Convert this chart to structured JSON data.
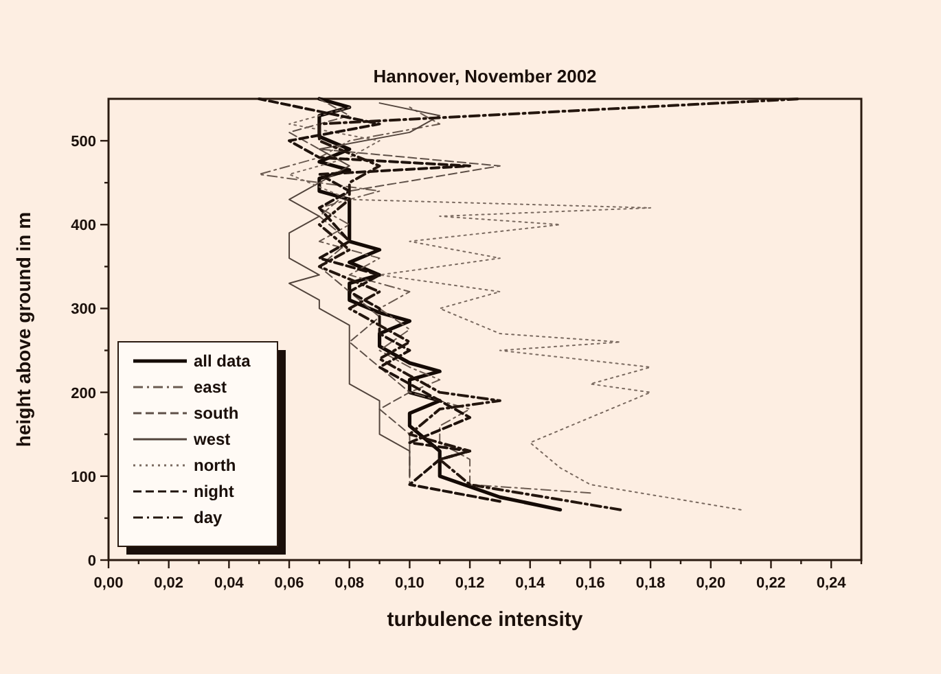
{
  "chart_data": {
    "type": "line",
    "title": "Hannover, November 2002",
    "xlabel": "turbulence intensity",
    "ylabel": "height above ground in m",
    "xlim": [
      0,
      0.25
    ],
    "ylim": [
      0,
      550
    ],
    "xticks": [
      {
        "value": 0,
        "label": "0,00"
      },
      {
        "value": 0.01,
        "label": null
      },
      {
        "value": 0.02,
        "label": "0,02"
      },
      {
        "value": 0.03,
        "label": null
      },
      {
        "value": 0.04,
        "label": "0,04"
      },
      {
        "value": 0.05,
        "label": null
      },
      {
        "value": 0.06,
        "label": "0,06"
      },
      {
        "value": 0.07,
        "label": null
      },
      {
        "value": 0.08,
        "label": "0,08"
      },
      {
        "value": 0.09,
        "label": null
      },
      {
        "value": 0.1,
        "label": "0,10"
      },
      {
        "value": 0.11,
        "label": null
      },
      {
        "value": 0.12,
        "label": "0,12"
      },
      {
        "value": 0.13,
        "label": null
      },
      {
        "value": 0.14,
        "label": "0,14"
      },
      {
        "value": 0.15,
        "label": null
      },
      {
        "value": 0.16,
        "label": "0,16"
      },
      {
        "value": 0.17,
        "label": null
      },
      {
        "value": 0.18,
        "label": "0,18"
      },
      {
        "value": 0.19,
        "label": null
      },
      {
        "value": 0.2,
        "label": "0,20"
      },
      {
        "value": 0.21,
        "label": null
      },
      {
        "value": 0.22,
        "label": "0,22"
      },
      {
        "value": 0.23,
        "label": null
      },
      {
        "value": 0.24,
        "label": "0,24"
      },
      {
        "value": 0.25,
        "label": null
      }
    ],
    "yticks": [
      0,
      {
        "value": 50,
        "label": null
      },
      100,
      {
        "value": 150,
        "label": null
      },
      200,
      {
        "value": 250,
        "label": null
      },
      300,
      {
        "value": 350,
        "label": null
      },
      400,
      {
        "value": 450,
        "label": null
      },
      500
    ],
    "legend": "bottom left",
    "grid": false,
    "series": [
      {
        "name": "all data",
        "color": "#140a05",
        "line_style": "solid",
        "x": [
          0.15,
          0.13,
          0.11,
          0.11,
          0.1,
          0.1,
          0.11,
          0.1,
          0.1,
          0.11,
          0.1,
          0.09,
          0.09,
          0.1,
          0.09,
          0.08,
          0.08,
          0.09,
          0.08,
          0.09,
          0.08,
          0.08,
          0.07,
          0.07,
          0.08,
          0.07,
          0.08,
          0.07,
          0.07,
          0.08,
          0.07
        ],
        "values": [
          60,
          75,
          100,
          130,
          160,
          175,
          190,
          200,
          215,
          225,
          235,
          255,
          270,
          285,
          295,
          310,
          330,
          340,
          355,
          370,
          380,
          430,
          440,
          455,
          465,
          475,
          490,
          505,
          530,
          540,
          550
        ]
      },
      {
        "name": "east",
        "color": "#6a5a50",
        "line_style": "dashdot",
        "x": [
          0.16,
          0.12,
          0.12,
          0.11,
          0.11,
          0.12,
          0.1,
          0.11,
          0.1,
          0.09,
          0.1,
          0.09,
          0.1,
          0.08,
          0.09,
          0.07,
          0.08,
          0.07,
          0.09,
          0.05,
          0.07,
          0.08,
          0.11,
          0.1
        ],
        "values": [
          80,
          90,
          120,
          140,
          160,
          180,
          200,
          215,
          230,
          250,
          275,
          300,
          320,
          340,
          360,
          380,
          400,
          420,
          440,
          460,
          480,
          500,
          520,
          540
        ]
      },
      {
        "name": "south",
        "color": "#5e5048",
        "line_style": "dashed",
        "x": [
          0.13,
          0.1,
          0.1,
          0.09,
          0.1,
          0.09,
          0.08,
          0.09,
          0.08,
          0.07,
          0.08,
          0.07,
          0.08,
          0.13,
          0.07,
          0.06,
          0.08,
          0.07
        ],
        "values": [
          70,
          90,
          150,
          180,
          200,
          230,
          260,
          290,
          320,
          350,
          380,
          410,
          440,
          470,
          490,
          510,
          530,
          550
        ]
      },
      {
        "name": "west",
        "color": "#52443c",
        "line_style": "solid",
        "x": [
          0.1,
          0.1,
          0.09,
          0.09,
          0.08,
          0.08,
          0.07,
          0.07,
          0.06,
          0.07,
          0.06,
          0.06,
          0.07,
          0.06,
          0.07,
          0.08,
          0.07,
          0.1,
          0.11,
          0.09
        ],
        "values": [
          100,
          130,
          150,
          190,
          210,
          280,
          300,
          310,
          330,
          340,
          360,
          390,
          410,
          430,
          450,
          470,
          490,
          510,
          530,
          545
        ]
      },
      {
        "name": "north",
        "color": "#7a6a60",
        "line_style": "dotted",
        "x": [
          0.21,
          0.16,
          0.15,
          0.14,
          0.16,
          0.17,
          0.18,
          0.16,
          0.18,
          0.13,
          0.17,
          0.13,
          0.11,
          0.13,
          0.09,
          0.13,
          0.1,
          0.15,
          0.11,
          0.18,
          0.08,
          0.06,
          0.08,
          0.09,
          0.06,
          0.08
        ],
        "values": [
          60,
          90,
          110,
          140,
          170,
          185,
          200,
          210,
          230,
          250,
          260,
          270,
          300,
          320,
          340,
          360,
          380,
          400,
          410,
          420,
          430,
          460,
          480,
          500,
          520,
          540
        ]
      },
      {
        "name": "night",
        "color": "#1e120c",
        "line_style": "dashed",
        "x": [
          0.13,
          0.1,
          0.11,
          0.12,
          0.1,
          0.12,
          0.11,
          0.1,
          0.09,
          0.1,
          0.09,
          0.09,
          0.08,
          0.09,
          0.07,
          0.08,
          0.07,
          0.08,
          0.07,
          0.12,
          0.07,
          0.06,
          0.09,
          0.05
        ],
        "values": [
          70,
          90,
          120,
          130,
          140,
          170,
          190,
          210,
          230,
          250,
          270,
          300,
          320,
          340,
          360,
          380,
          420,
          440,
          460,
          470,
          480,
          500,
          520,
          550
        ]
      },
      {
        "name": "day",
        "color": "#24160e",
        "line_style": "dashdot",
        "x": [
          0.17,
          0.12,
          0.11,
          0.12,
          0.1,
          0.11,
          0.13,
          0.11,
          0.1,
          0.09,
          0.1,
          0.09,
          0.08,
          0.09,
          0.07,
          0.08,
          0.07,
          0.08,
          0.08,
          0.09,
          0.07,
          0.07,
          0.23
        ],
        "values": [
          60,
          90,
          120,
          130,
          150,
          180,
          190,
          200,
          220,
          240,
          260,
          280,
          300,
          320,
          350,
          370,
          400,
          430,
          450,
          470,
          500,
          520,
          550
        ]
      }
    ]
  }
}
